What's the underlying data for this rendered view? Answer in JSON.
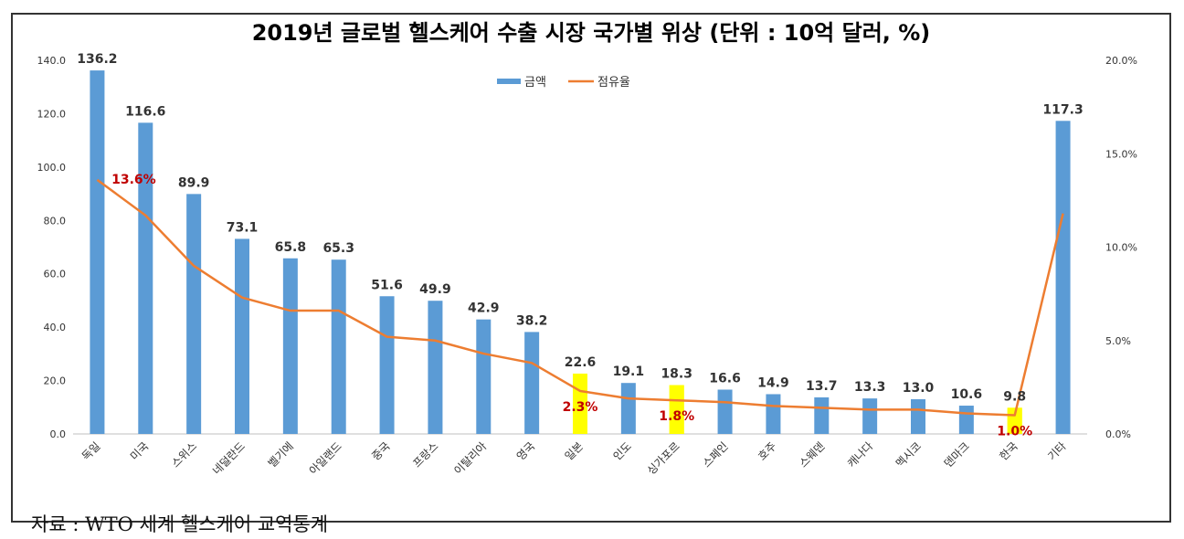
{
  "chart_data": {
    "type": "bar",
    "title": "2019년 글로벌 헬스케어 수출 시장 국가별 위상 (단위 : 10억 달러, %)",
    "categories": [
      "독일",
      "미국",
      "스위스",
      "네덜란드",
      "벨기에",
      "아일랜드",
      "중국",
      "프랑스",
      "이탈리아",
      "영국",
      "일본",
      "인도",
      "싱가포르",
      "스페인",
      "호주",
      "스웨덴",
      "캐나다",
      "멕시코",
      "덴마크",
      "한국",
      "기타"
    ],
    "series": [
      {
        "name": "금액",
        "kind": "bar",
        "axis": "left",
        "color": "#5b9bd5",
        "values": [
          136.2,
          116.6,
          89.9,
          73.1,
          65.8,
          65.3,
          51.6,
          49.9,
          42.9,
          38.2,
          22.6,
          19.1,
          18.3,
          16.6,
          14.9,
          13.7,
          13.3,
          13.0,
          10.6,
          9.8,
          117.3
        ]
      },
      {
        "name": "점유율",
        "kind": "line",
        "axis": "right",
        "color": "#ed7d31",
        "values": [
          13.6,
          11.7,
          9.0,
          7.3,
          6.6,
          6.6,
          5.2,
          5.0,
          4.3,
          3.8,
          2.3,
          1.9,
          1.8,
          1.7,
          1.5,
          1.4,
          1.3,
          1.3,
          1.1,
          1.0,
          11.8
        ]
      }
    ],
    "highlight_color": "#ffff00",
    "highlighted_categories": [
      "일본",
      "싱가포르",
      "한국"
    ],
    "bar_labels": [
      "136.2",
      "116.6",
      "89.9",
      "73.1",
      "65.8",
      "65.3",
      "51.6",
      "49.9",
      "42.9",
      "38.2",
      "22.6",
      "19.1",
      "18.3",
      "16.6",
      "14.9",
      "13.7",
      "13.3",
      "13.0",
      "10.6",
      "9.8",
      "117.3"
    ],
    "line_labels": [
      {
        "category": "독일",
        "text": "13.6%"
      },
      {
        "category": "일본",
        "text": "2.3%"
      },
      {
        "category": "싱가포르",
        "text": "1.8%"
      },
      {
        "category": "한국",
        "text": "1.0%"
      }
    ],
    "line_label_color": "#c00000",
    "left_axis": {
      "ylim": [
        0,
        140
      ],
      "ticks": [
        "0.0",
        "20.0",
        "40.0",
        "60.0",
        "80.0",
        "100.0",
        "120.0",
        "140.0"
      ]
    },
    "right_axis": {
      "ylim": [
        0,
        20
      ],
      "ticks": [
        "0.0%",
        "5.0%",
        "10.0%",
        "15.0%",
        "20.0%"
      ]
    },
    "legend": {
      "placement": "top-center",
      "entries": [
        "금액",
        "점유율"
      ]
    },
    "grid": false
  },
  "source": "자료 : WTO 세계 헬스케어 교역통계"
}
